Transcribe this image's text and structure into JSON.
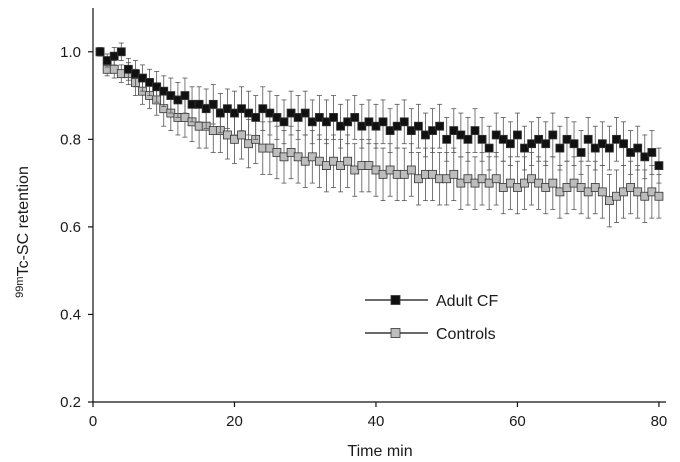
{
  "chart_data": {
    "type": "scatter",
    "title": "",
    "xlabel": "Time min",
    "ylabel_prefix": "99m",
    "ylabel_main": "Tc-SC retention",
    "xlim": [
      0,
      81
    ],
    "ylim": [
      0.2,
      1.1
    ],
    "xticks": [
      0,
      20,
      40,
      60,
      80
    ],
    "yticks": [
      0.2,
      0.4,
      0.6,
      0.8,
      1.0
    ],
    "xtick_labels": [
      "0",
      "20",
      "40",
      "60",
      "80"
    ],
    "ytick_labels": [
      "0.2",
      "0.4",
      "0.6",
      "0.8",
      "1.0"
    ],
    "legend_position": "center-right",
    "series": [
      {
        "name": "Adult CF",
        "marker": "square",
        "fill": "#111111",
        "x": [
          1,
          2,
          3,
          4,
          5,
          6,
          7,
          8,
          9,
          10,
          11,
          12,
          13,
          14,
          15,
          16,
          17,
          18,
          19,
          20,
          21,
          22,
          23,
          24,
          25,
          26,
          27,
          28,
          29,
          30,
          31,
          32,
          33,
          34,
          35,
          36,
          37,
          38,
          39,
          40,
          41,
          42,
          43,
          44,
          45,
          46,
          47,
          48,
          49,
          50,
          51,
          52,
          53,
          54,
          55,
          56,
          57,
          58,
          59,
          60,
          61,
          62,
          63,
          64,
          65,
          66,
          67,
          68,
          69,
          70,
          71,
          72,
          73,
          74,
          75,
          76,
          77,
          78,
          79,
          80
        ],
        "y": [
          1.0,
          0.98,
          0.99,
          1.0,
          0.96,
          0.95,
          0.94,
          0.93,
          0.92,
          0.91,
          0.9,
          0.89,
          0.9,
          0.88,
          0.88,
          0.87,
          0.88,
          0.86,
          0.87,
          0.86,
          0.87,
          0.86,
          0.85,
          0.87,
          0.86,
          0.85,
          0.84,
          0.86,
          0.85,
          0.86,
          0.84,
          0.85,
          0.84,
          0.85,
          0.83,
          0.84,
          0.85,
          0.83,
          0.84,
          0.83,
          0.84,
          0.82,
          0.83,
          0.84,
          0.82,
          0.83,
          0.81,
          0.82,
          0.83,
          0.8,
          0.82,
          0.81,
          0.8,
          0.82,
          0.8,
          0.78,
          0.81,
          0.8,
          0.79,
          0.81,
          0.78,
          0.79,
          0.8,
          0.79,
          0.81,
          0.78,
          0.8,
          0.79,
          0.77,
          0.8,
          0.78,
          0.79,
          0.78,
          0.8,
          0.79,
          0.77,
          0.78,
          0.76,
          0.77,
          0.74
        ],
        "err": [
          0.01,
          0.015,
          0.02,
          0.02,
          0.025,
          0.03,
          0.03,
          0.03,
          0.035,
          0.035,
          0.04,
          0.04,
          0.04,
          0.04,
          0.04,
          0.045,
          0.045,
          0.045,
          0.045,
          0.05,
          0.05,
          0.05,
          0.05,
          0.05,
          0.05,
          0.05,
          0.05,
          0.05,
          0.05,
          0.05,
          0.05,
          0.05,
          0.05,
          0.05,
          0.05,
          0.05,
          0.05,
          0.05,
          0.05,
          0.05,
          0.05,
          0.05,
          0.05,
          0.05,
          0.05,
          0.05,
          0.05,
          0.05,
          0.05,
          0.05,
          0.05,
          0.05,
          0.05,
          0.05,
          0.05,
          0.05,
          0.05,
          0.05,
          0.05,
          0.05,
          0.05,
          0.05,
          0.05,
          0.05,
          0.05,
          0.05,
          0.05,
          0.05,
          0.05,
          0.05,
          0.05,
          0.05,
          0.05,
          0.05,
          0.05,
          0.05,
          0.05,
          0.05,
          0.05,
          0.04
        ]
      },
      {
        "name": "Controls",
        "marker": "square",
        "fill": "#bdbdbd",
        "x": [
          1,
          2,
          3,
          4,
          5,
          6,
          7,
          8,
          9,
          10,
          11,
          12,
          13,
          14,
          15,
          16,
          17,
          18,
          19,
          20,
          21,
          22,
          23,
          24,
          25,
          26,
          27,
          28,
          29,
          30,
          31,
          32,
          33,
          34,
          35,
          36,
          37,
          38,
          39,
          40,
          41,
          42,
          43,
          44,
          45,
          46,
          47,
          48,
          49,
          50,
          51,
          52,
          53,
          54,
          55,
          56,
          57,
          58,
          59,
          60,
          61,
          62,
          63,
          64,
          65,
          66,
          67,
          68,
          69,
          70,
          71,
          72,
          73,
          74,
          75,
          76,
          77,
          78,
          79,
          80
        ],
        "y": [
          1.0,
          0.96,
          0.96,
          0.95,
          0.95,
          0.93,
          0.91,
          0.9,
          0.89,
          0.87,
          0.86,
          0.85,
          0.85,
          0.84,
          0.83,
          0.83,
          0.82,
          0.82,
          0.81,
          0.8,
          0.81,
          0.79,
          0.8,
          0.78,
          0.78,
          0.77,
          0.76,
          0.77,
          0.76,
          0.75,
          0.76,
          0.75,
          0.74,
          0.75,
          0.74,
          0.75,
          0.73,
          0.74,
          0.74,
          0.73,
          0.72,
          0.73,
          0.72,
          0.72,
          0.73,
          0.71,
          0.72,
          0.72,
          0.71,
          0.71,
          0.72,
          0.7,
          0.71,
          0.7,
          0.71,
          0.7,
          0.71,
          0.69,
          0.7,
          0.69,
          0.7,
          0.71,
          0.7,
          0.69,
          0.7,
          0.68,
          0.69,
          0.7,
          0.69,
          0.68,
          0.69,
          0.68,
          0.66,
          0.67,
          0.68,
          0.69,
          0.68,
          0.67,
          0.68,
          0.67
        ],
        "err": [
          0.005,
          0.015,
          0.02,
          0.02,
          0.025,
          0.03,
          0.03,
          0.03,
          0.035,
          0.04,
          0.04,
          0.04,
          0.045,
          0.045,
          0.05,
          0.05,
          0.05,
          0.05,
          0.055,
          0.055,
          0.055,
          0.055,
          0.055,
          0.06,
          0.06,
          0.06,
          0.06,
          0.06,
          0.06,
          0.06,
          0.06,
          0.06,
          0.06,
          0.06,
          0.06,
          0.06,
          0.06,
          0.06,
          0.06,
          0.06,
          0.06,
          0.06,
          0.06,
          0.06,
          0.06,
          0.06,
          0.06,
          0.06,
          0.06,
          0.06,
          0.06,
          0.06,
          0.06,
          0.06,
          0.06,
          0.06,
          0.06,
          0.06,
          0.06,
          0.06,
          0.06,
          0.06,
          0.06,
          0.06,
          0.06,
          0.06,
          0.06,
          0.06,
          0.06,
          0.06,
          0.06,
          0.06,
          0.06,
          0.06,
          0.06,
          0.06,
          0.06,
          0.06,
          0.06,
          0.05
        ]
      }
    ]
  }
}
